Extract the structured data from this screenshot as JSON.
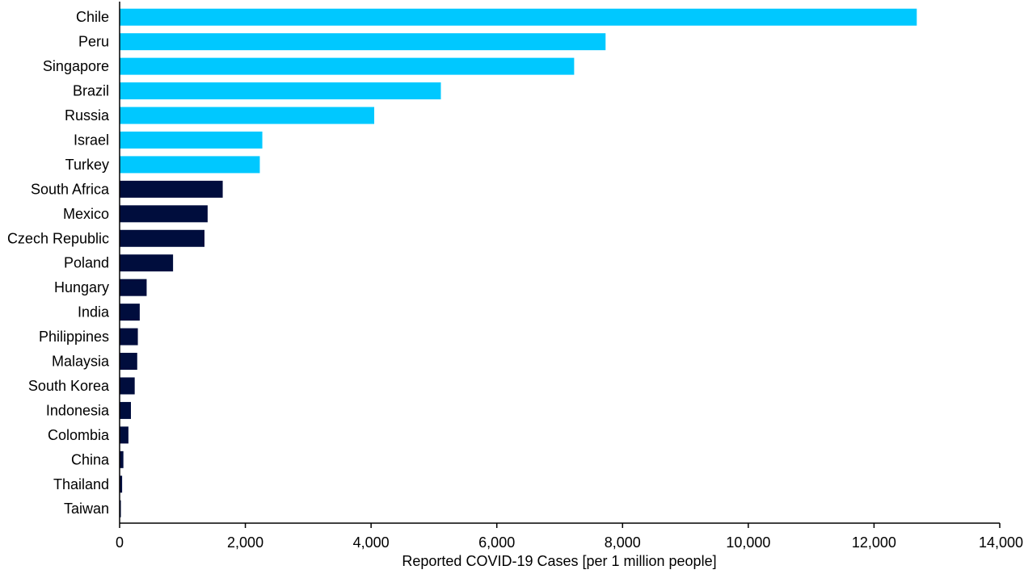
{
  "chart_data": {
    "type": "bar",
    "orientation": "horizontal",
    "title": "",
    "xlabel": "Reported COVID-19 Cases [per 1 million people]",
    "ylabel": "",
    "xlim": [
      0,
      14000
    ],
    "xticks": [
      0,
      2000,
      4000,
      6000,
      8000,
      10000,
      12000,
      14000
    ],
    "xtick_labels": [
      "0",
      "2,000",
      "4,000",
      "6,000",
      "8,000",
      "10,000",
      "12,000",
      "14,000"
    ],
    "grid": false,
    "legend": "none",
    "categories": [
      "Chile",
      "Peru",
      "Singapore",
      "Brazil",
      "Russia",
      "Israel",
      "Turkey",
      "South Africa",
      "Mexico",
      "Czech Republic",
      "Poland",
      "Hungary",
      "India",
      "Philippines",
      "Malaysia",
      "South Korea",
      "Indonesia",
      "Colombia",
      "China",
      "Thailand",
      "Taiwan"
    ],
    "values": [
      12680,
      7730,
      7230,
      5110,
      4050,
      2270,
      2230,
      1640,
      1400,
      1350,
      850,
      430,
      320,
      290,
      280,
      240,
      180,
      140,
      60,
      40,
      20
    ],
    "bar_colors": [
      "#00c8ff",
      "#00c8ff",
      "#00c8ff",
      "#00c8ff",
      "#00c8ff",
      "#00c8ff",
      "#00c8ff",
      "#000d3d",
      "#000d3d",
      "#000d3d",
      "#000d3d",
      "#000d3d",
      "#000d3d",
      "#000d3d",
      "#000d3d",
      "#000d3d",
      "#000d3d",
      "#000d3d",
      "#000d3d",
      "#000d3d",
      "#000d3d"
    ]
  }
}
